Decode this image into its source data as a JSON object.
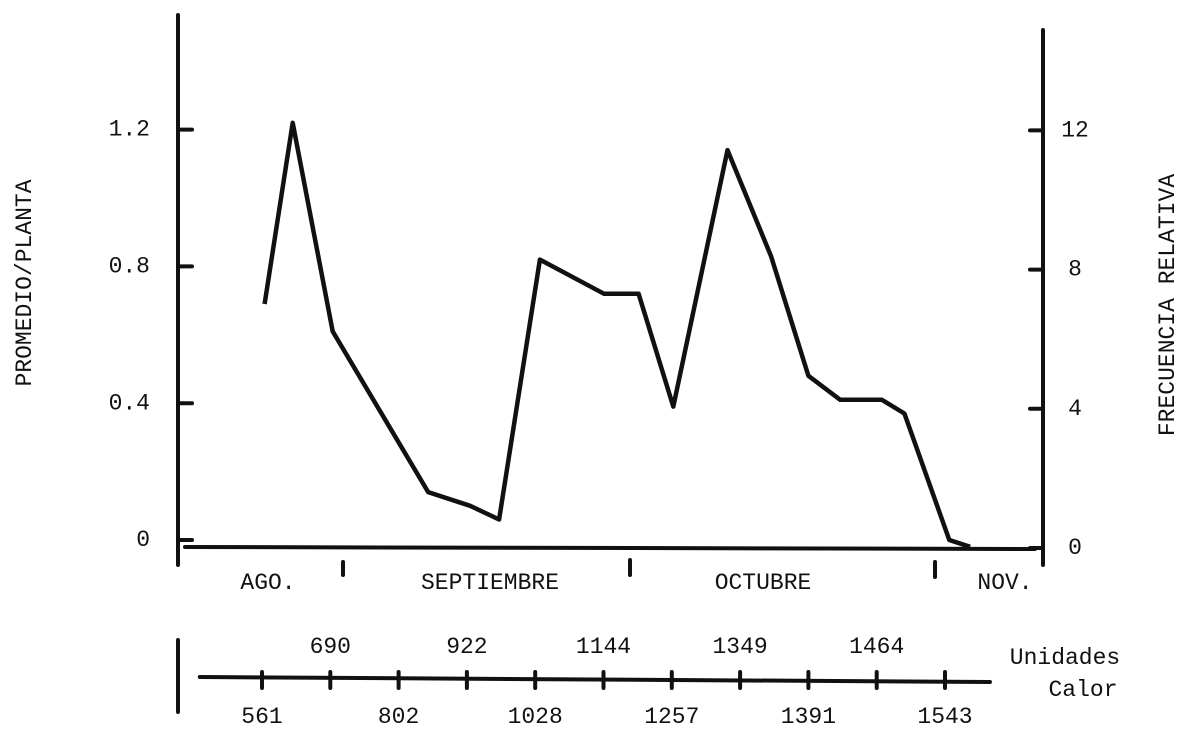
{
  "chart_data": {
    "type": "line",
    "ylabel": "PROMEDIO/PLANTA",
    "y2label": "FRECUENCIA RELATIVA",
    "xlabel": [
      "Unidades",
      "Calor"
    ],
    "months": [
      "AGO.",
      "SEPTIEMBRE",
      "OCTUBRE",
      "NOV."
    ],
    "x": [
      566,
      619,
      694,
      854,
      927,
      972,
      1036,
      1145,
      1202,
      1259,
      1332,
      1368,
      1391,
      1425,
      1470,
      1496,
      1548,
      1572
    ],
    "values": [
      0.69,
      1.22,
      0.61,
      0.14,
      0.1,
      0.06,
      0.82,
      0.72,
      0.72,
      0.39,
      1.14,
      0.83,
      0.48,
      0.41,
      0.41,
      0.37,
      0,
      -0.02
    ],
    "color": "#111111",
    "xlim": [
      402,
      1595
    ],
    "xticks": [
      561,
      690,
      802,
      922,
      1028,
      1144,
      1257,
      1349,
      1391,
      1464,
      1543
    ],
    "ylim": [
      0,
      1.5
    ],
    "yticks": [
      0,
      0.4,
      0.8,
      1.2
    ],
    "y2lim": [
      0,
      15
    ],
    "y2ticks": [
      0,
      4,
      8,
      12
    ],
    "grid": false
  }
}
